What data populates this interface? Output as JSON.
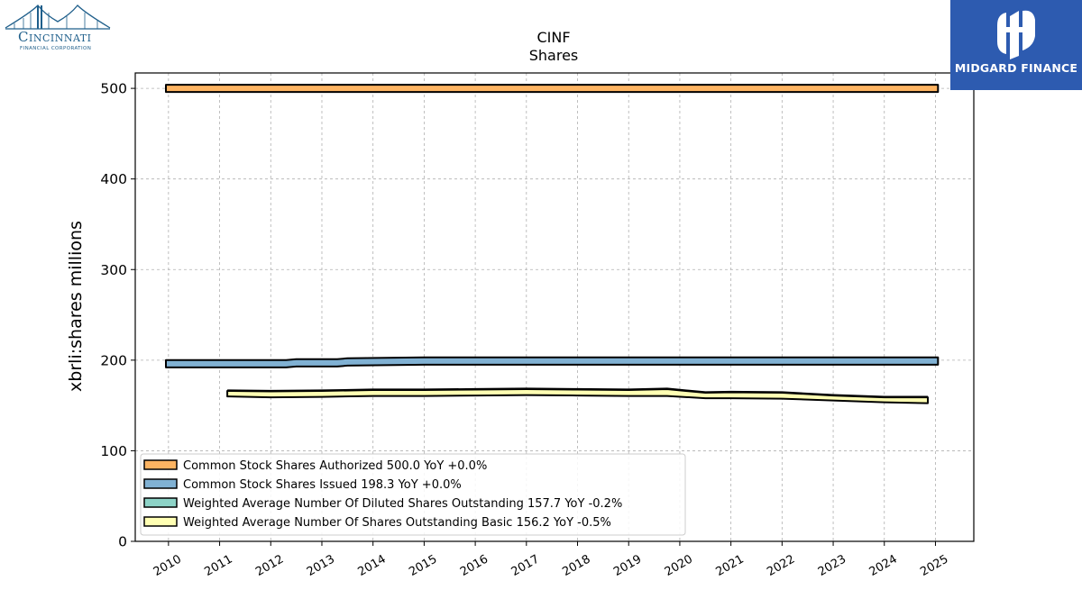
{
  "brand": {
    "company_logo_name": "Cincinnati",
    "company_logo_sub": "FINANCIAL CORPORATION",
    "publisher_name": "MIDGARD FINANCE",
    "publisher_bg": "#2d5bb0",
    "company_color": "#1f5f8b"
  },
  "chart_data": {
    "type": "area",
    "title": "CINF",
    "subtitle": "Shares",
    "ylabel": "xbrli:shares millions",
    "xlabel": "",
    "ylim": [
      0,
      517
    ],
    "xlim": [
      2009.35,
      2025.75
    ],
    "yticks": [
      "0",
      "100",
      "200",
      "300",
      "400",
      "500"
    ],
    "xticks": [
      "2010",
      "2011",
      "2012",
      "2013",
      "2014",
      "2015",
      "2016",
      "2017",
      "2018",
      "2019",
      "2020",
      "2021",
      "2022",
      "2023",
      "2024",
      "2025"
    ],
    "grid": true,
    "legend_position": "lower-left",
    "series": [
      {
        "name": "Common Stock Shares Authorized",
        "legend_label": "Common Stock Shares Authorized  500.0 YoY +0.0%",
        "color": "#fdb462",
        "x": [
          2009.95,
          2025.05
        ],
        "low": [
          496,
          496
        ],
        "high": [
          504,
          504
        ]
      },
      {
        "name": "Common Stock Shares Issued",
        "legend_label": "Common Stock Shares Issued  198.3 YoY +0.0%",
        "color": "#80b1d3",
        "x": [
          2009.95,
          2012.3,
          2012.5,
          2013.3,
          2013.5,
          2015.0,
          2025.05
        ],
        "low": [
          192,
          192,
          193,
          193,
          194,
          195,
          195
        ],
        "high": [
          200,
          200,
          201,
          201,
          202,
          203,
          203
        ]
      },
      {
        "name": "Weighted Average Number Of Diluted Shares Outstanding",
        "legend_label": "Weighted Average Number Of Diluted Shares Outstanding  157.7 YoY -0.2%",
        "color": "#8dd3c7",
        "x": [
          2011.15,
          2012.0,
          2013.0,
          2014.0,
          2015.0,
          2016.0,
          2017.0,
          2018.0,
          2019.0,
          2019.75,
          2020.5,
          2021.0,
          2022.0,
          2023.0,
          2024.0,
          2024.85
        ],
        "values": [
          166,
          165.5,
          166,
          167,
          167,
          167.5,
          168,
          167.5,
          167,
          168,
          164,
          164.5,
          164,
          161,
          159,
          159
        ]
      },
      {
        "name": "Weighted Average Number Of Shares Outstanding Basic",
        "legend_label": "Weighted Average Number Of Shares Outstanding Basic  156.2 YoY -0.5%",
        "color": "#ffffb3",
        "x": [
          2011.15,
          2012.0,
          2013.0,
          2014.0,
          2015.0,
          2016.0,
          2017.0,
          2018.0,
          2019.0,
          2019.75,
          2020.5,
          2021.0,
          2022.0,
          2023.0,
          2024.0,
          2024.85
        ],
        "low": [
          160,
          159,
          159.5,
          160.5,
          160.5,
          161,
          161.5,
          161,
          160.5,
          160.5,
          158,
          158,
          157.5,
          155.5,
          153.5,
          152.5
        ],
        "high": [
          166,
          165.5,
          166,
          167,
          167,
          167.5,
          168,
          167.5,
          167,
          168,
          164,
          164.5,
          164,
          161,
          159,
          159
        ]
      }
    ]
  }
}
